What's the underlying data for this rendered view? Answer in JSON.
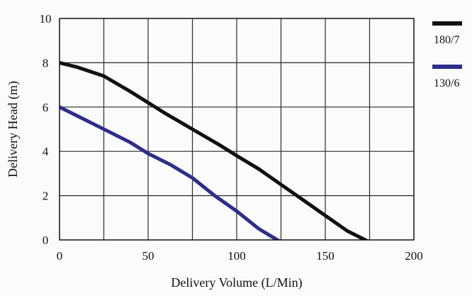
{
  "chart_data": {
    "type": "line",
    "xlabel": "Delivery Volume (L/Min)",
    "ylabel": "Delivery Head (m)",
    "xlim": [
      0,
      200
    ],
    "ylim": [
      0,
      10
    ],
    "x_ticks": [
      0,
      50,
      100,
      150,
      200
    ],
    "y_ticks": [
      0,
      2,
      4,
      6,
      8,
      10
    ],
    "x_tick_labels": [
      "0",
      "50",
      "100",
      "150",
      "200"
    ],
    "y_tick_labels": [
      "0",
      "2",
      "4",
      "6",
      "8",
      "10"
    ],
    "grid": true,
    "legend_position": "right",
    "series": [
      {
        "name": "180/7",
        "color": "#111111",
        "x": [
          0,
          10,
          25,
          40,
          50,
          60,
          75,
          90,
          100,
          112.5,
          125,
          137.5,
          150,
          162.5,
          175
        ],
        "y": [
          8.0,
          7.8,
          7.4,
          6.7,
          6.2,
          5.7,
          5.0,
          4.3,
          3.8,
          3.2,
          2.5,
          1.8,
          1.1,
          0.4,
          -0.1
        ]
      },
      {
        "name": "130/6",
        "color": "#2d2d8a",
        "x": [
          0,
          15,
          30,
          40,
          50,
          62.5,
          75,
          87.5,
          100,
          112.5,
          125
        ],
        "y": [
          6.0,
          5.4,
          4.8,
          4.4,
          3.9,
          3.4,
          2.8,
          2.0,
          1.3,
          0.5,
          -0.1
        ]
      }
    ]
  }
}
